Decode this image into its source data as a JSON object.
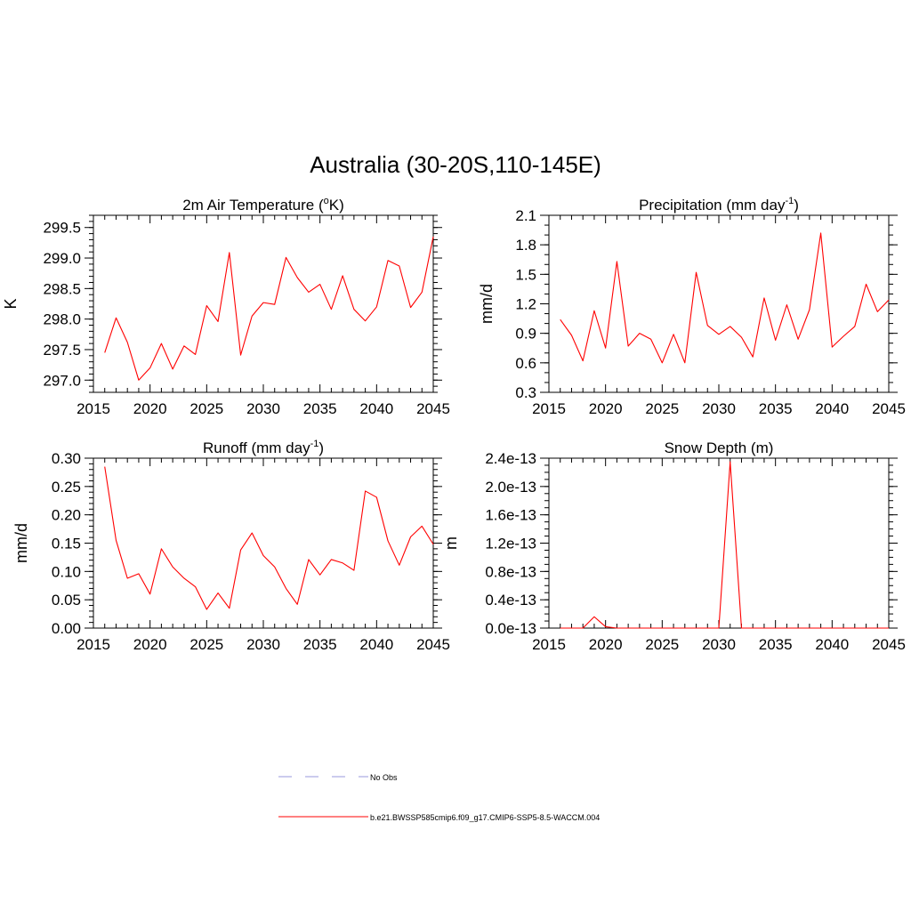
{
  "figure": {
    "title": "Australia (30-20S,110-145E)"
  },
  "legend": {
    "placement": "bottom-center",
    "entries": [
      {
        "label": "No Obs",
        "color": "#9999dd",
        "dashed": true
      },
      {
        "label": "b.e21.BWSSP585cmip6.f09_g17.CMIP6-SSP5-8.5-WACCM.004",
        "color": "#ff0000",
        "dashed": false
      }
    ]
  },
  "chart_data": [
    {
      "type": "line",
      "title_main": "2m Air Temperature (",
      "title_sup": "o",
      "title_end": "K)",
      "ylabel": "K",
      "xlim": [
        2015,
        2045
      ],
      "ylim": [
        296.8,
        299.7
      ],
      "xticks": [
        "2015",
        "2020",
        "2025",
        "2030",
        "2035",
        "2040",
        "2045"
      ],
      "yticks": [
        {
          "v": 297.0,
          "label": "297.0"
        },
        {
          "v": 297.5,
          "label": "297.5"
        },
        {
          "v": 298.0,
          "label": "298.0"
        },
        {
          "v": 298.5,
          "label": "298.5"
        },
        {
          "v": 299.0,
          "label": "299.0"
        },
        {
          "v": 299.5,
          "label": "299.5"
        }
      ],
      "minor_step": 0.1,
      "grid": false,
      "series": [
        {
          "color": "#ff0000",
          "x": [
            2016,
            2017,
            2018,
            2019,
            2020,
            2021,
            2022,
            2023,
            2024,
            2025,
            2026,
            2027,
            2028,
            2029,
            2030,
            2031,
            2032,
            2033,
            2034,
            2035,
            2036,
            2037,
            2038,
            2039,
            2040,
            2041,
            2042,
            2043,
            2044,
            2045
          ],
          "values": [
            297.45,
            298.02,
            297.62,
            297.0,
            297.2,
            297.6,
            297.18,
            297.56,
            297.42,
            298.22,
            297.96,
            299.09,
            297.41,
            298.05,
            298.27,
            298.24,
            299.01,
            298.68,
            298.44,
            298.57,
            298.16,
            298.71,
            298.16,
            297.97,
            298.2,
            298.96,
            298.87,
            298.19,
            298.44,
            299.35
          ]
        }
      ]
    },
    {
      "type": "line",
      "title_main": "Precipitation (mm day",
      "title_sup": "-1",
      "title_end": ")",
      "ylabel": "mm/d",
      "xlim": [
        2015,
        2045
      ],
      "ylim": [
        0.3,
        2.1
      ],
      "xticks": [
        "2015",
        "2020",
        "2025",
        "2030",
        "2035",
        "2040",
        "2045"
      ],
      "yticks": [
        {
          "v": 0.3,
          "label": "0.3"
        },
        {
          "v": 0.6,
          "label": "0.6"
        },
        {
          "v": 0.9,
          "label": "0.9"
        },
        {
          "v": 1.2,
          "label": "1.2"
        },
        {
          "v": 1.5,
          "label": "1.5"
        },
        {
          "v": 1.8,
          "label": "1.8"
        },
        {
          "v": 2.1,
          "label": "2.1"
        }
      ],
      "minor_step": 0.1,
      "grid": false,
      "series": [
        {
          "color": "#ff0000",
          "x": [
            2016,
            2017,
            2018,
            2019,
            2020,
            2021,
            2022,
            2023,
            2024,
            2025,
            2026,
            2027,
            2028,
            2029,
            2030,
            2031,
            2032,
            2033,
            2034,
            2035,
            2036,
            2037,
            2038,
            2039,
            2040,
            2041,
            2042,
            2043,
            2044,
            2045
          ],
          "values": [
            1.04,
            0.88,
            0.62,
            1.13,
            0.75,
            1.63,
            0.77,
            0.9,
            0.84,
            0.6,
            0.89,
            0.6,
            1.52,
            0.98,
            0.89,
            0.97,
            0.86,
            0.66,
            1.26,
            0.83,
            1.19,
            0.84,
            1.14,
            1.92,
            0.76,
            0.87,
            0.97,
            1.4,
            1.12,
            1.24
          ]
        }
      ]
    },
    {
      "type": "line",
      "title_main": "Runoff (mm day",
      "title_sup": "-1",
      "title_end": ")",
      "ylabel": "mm/d",
      "xlim": [
        2015,
        2045
      ],
      "ylim": [
        0.0,
        0.3
      ],
      "xticks": [
        "2015",
        "2020",
        "2025",
        "2030",
        "2035",
        "2040",
        "2045"
      ],
      "yticks": [
        {
          "v": 0.0,
          "label": "0.00"
        },
        {
          "v": 0.05,
          "label": "0.05"
        },
        {
          "v": 0.1,
          "label": "0.10"
        },
        {
          "v": 0.15,
          "label": "0.15"
        },
        {
          "v": 0.2,
          "label": "0.20"
        },
        {
          "v": 0.25,
          "label": "0.25"
        },
        {
          "v": 0.3,
          "label": "0.30"
        }
      ],
      "minor_step": 0.01,
      "grid": false,
      "series": [
        {
          "color": "#ff0000",
          "x": [
            2016,
            2017,
            2018,
            2019,
            2020,
            2021,
            2022,
            2023,
            2024,
            2025,
            2026,
            2027,
            2028,
            2029,
            2030,
            2031,
            2032,
            2033,
            2034,
            2035,
            2036,
            2037,
            2038,
            2039,
            2040,
            2041,
            2042,
            2043,
            2044,
            2045
          ],
          "values": [
            0.285,
            0.155,
            0.088,
            0.096,
            0.06,
            0.14,
            0.108,
            0.088,
            0.073,
            0.033,
            0.062,
            0.035,
            0.138,
            0.168,
            0.128,
            0.108,
            0.07,
            0.042,
            0.121,
            0.094,
            0.121,
            0.115,
            0.102,
            0.242,
            0.231,
            0.154,
            0.111,
            0.161,
            0.18,
            0.148
          ]
        }
      ]
    },
    {
      "type": "line",
      "title_main": "Snow Depth (m)",
      "title_sup": "",
      "title_end": "",
      "ylabel": "m",
      "xlim": [
        2015,
        2045
      ],
      "ylim": [
        0.0,
        2.4e-13
      ],
      "xticks": [
        "2015",
        "2020",
        "2025",
        "2030",
        "2035",
        "2040",
        "2045"
      ],
      "yticks": [
        {
          "v": 0.0,
          "label": "0.0e-13"
        },
        {
          "v": 4e-14,
          "label": "0.4e-13"
        },
        {
          "v": 8e-14,
          "label": "0.8e-13"
        },
        {
          "v": 1.2e-13,
          "label": "1.2e-13"
        },
        {
          "v": 1.6e-13,
          "label": "1.6e-13"
        },
        {
          "v": 2e-13,
          "label": "2.0e-13"
        },
        {
          "v": 2.4e-13,
          "label": "2.4e-13"
        }
      ],
      "minor_step": 1e-14,
      "grid": false,
      "series": [
        {
          "color": "#ff0000",
          "x": [
            2016,
            2017,
            2018,
            2019,
            2020,
            2021,
            2022,
            2023,
            2024,
            2025,
            2026,
            2027,
            2028,
            2029,
            2030,
            2031,
            2032,
            2033,
            2034,
            2035,
            2036,
            2037,
            2038,
            2039,
            2040,
            2041,
            2042,
            2043,
            2044,
            2045
          ],
          "values": [
            0,
            0,
            0,
            1.6e-14,
            2e-15,
            0,
            0,
            0,
            0,
            0,
            0,
            0,
            0,
            0,
            0,
            2.35e-13,
            0,
            0,
            0,
            0,
            0,
            0,
            0,
            0,
            0,
            0,
            0,
            0,
            0,
            0
          ]
        }
      ]
    }
  ]
}
